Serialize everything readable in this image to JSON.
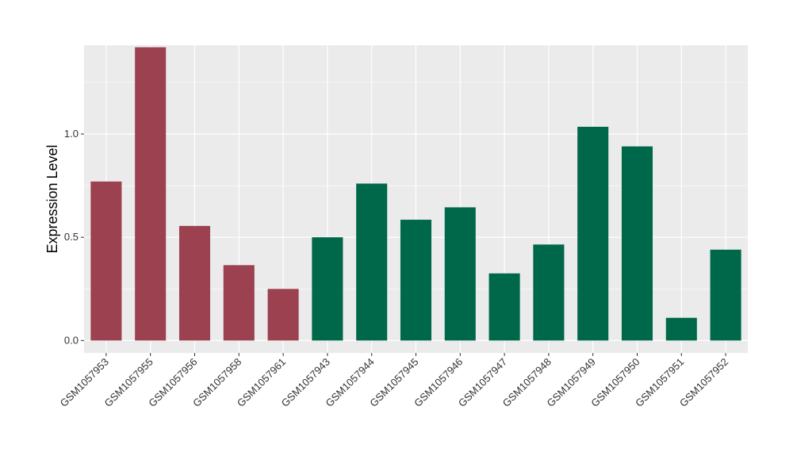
{
  "chart_data": {
    "type": "bar",
    "title": "",
    "xlabel": "",
    "ylabel": "Expression Level",
    "ylim": [
      -0.06,
      1.43
    ],
    "yticks": [
      0.0,
      0.5,
      1.0
    ],
    "ytick_labels": [
      "0.0",
      "0.5",
      "1.0"
    ],
    "grid": true,
    "legend": "none",
    "categories": [
      "GSM1057953",
      "GSM1057955",
      "GSM1057956",
      "GSM1057958",
      "GSM1057961",
      "GSM1057943",
      "GSM1057944",
      "GSM1057945",
      "GSM1057946",
      "GSM1057947",
      "GSM1057948",
      "GSM1057949",
      "GSM1057950",
      "GSM1057951",
      "GSM1057952"
    ],
    "values": [
      0.77,
      1.42,
      0.555,
      0.365,
      0.25,
      0.5,
      0.76,
      0.585,
      0.645,
      0.325,
      0.465,
      1.035,
      0.94,
      0.11,
      0.44
    ],
    "bar_colors": [
      "#9B4150",
      "#9B4150",
      "#9B4150",
      "#9B4150",
      "#9B4150",
      "#00684A",
      "#00684A",
      "#00684A",
      "#00684A",
      "#00684A",
      "#00684A",
      "#00684A",
      "#00684A",
      "#00684A",
      "#00684A"
    ],
    "panel_background": "#EBEBEB",
    "grid_color": "#FFFFFF"
  }
}
